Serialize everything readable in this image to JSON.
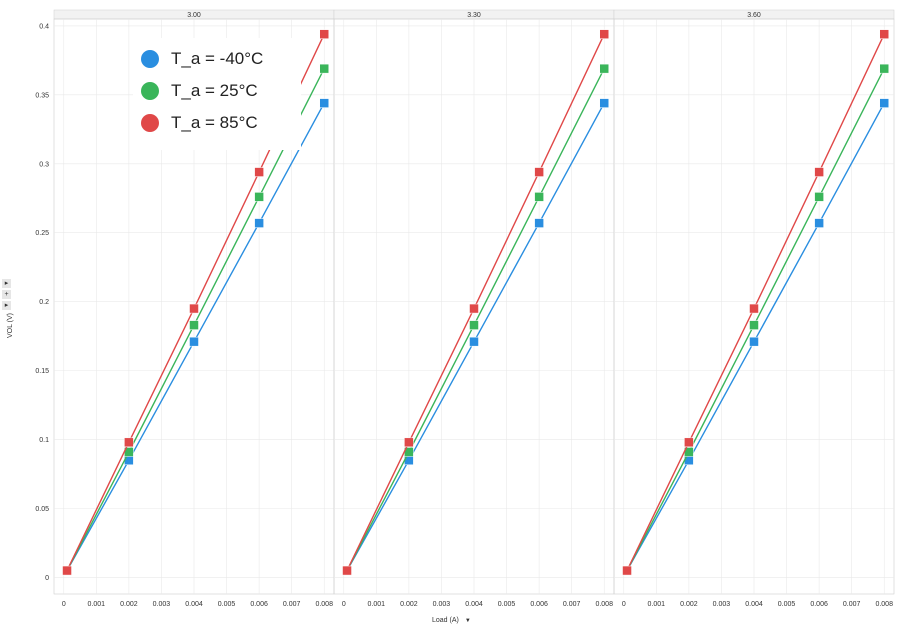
{
  "chart_data": {
    "type": "line",
    "facet_label": "",
    "panels": [
      "3.00",
      "3.30",
      "3.60"
    ],
    "xlabel": "Load (A)",
    "ylabel": "VOL (V)",
    "xlim": [
      -0.0003,
      0.0083
    ],
    "ylim": [
      -0.012,
      0.405
    ],
    "x_ticks": [
      "0",
      "0.001",
      "0.002",
      "0.003",
      "0.004",
      "0.005",
      "0.006",
      "0.007",
      "0.008"
    ],
    "y_ticks": [
      "0",
      "0.05",
      "0.1",
      "0.15",
      "0.2",
      "0.25",
      "0.3",
      "0.35",
      "0.4"
    ],
    "x": [
      0.0001,
      0.002,
      0.004,
      0.006,
      0.008
    ],
    "series": [
      {
        "name": "T_a = -40°C",
        "color": "#2a8ee0",
        "values": [
          0.005,
          0.085,
          0.171,
          0.257,
          0.344
        ]
      },
      {
        "name": "T_a = 25°C",
        "color": "#3ab55a",
        "values": [
          0.005,
          0.091,
          0.183,
          0.276,
          0.369
        ]
      },
      {
        "name": "T_a = 85°C",
        "color": "#e04848",
        "values": [
          0.005,
          0.098,
          0.195,
          0.294,
          0.394
        ]
      }
    ],
    "legend": "top-left",
    "grid": true
  }
}
